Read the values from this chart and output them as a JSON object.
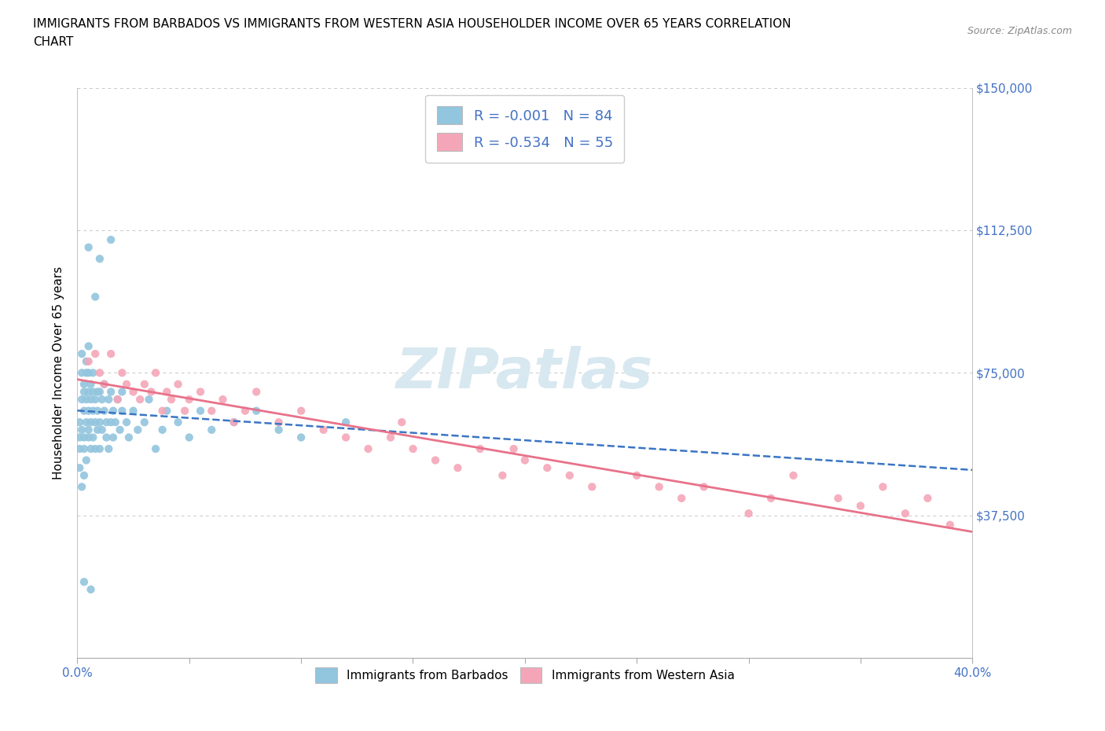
{
  "title_line1": "IMMIGRANTS FROM BARBADOS VS IMMIGRANTS FROM WESTERN ASIA HOUSEHOLDER INCOME OVER 65 YEARS CORRELATION",
  "title_line2": "CHART",
  "source": "Source: ZipAtlas.com",
  "ylabel": "Householder Income Over 65 years",
  "xlim": [
    0.0,
    0.4
  ],
  "ylim": [
    0,
    150000
  ],
  "yticks": [
    0,
    37500,
    75000,
    112500,
    150000
  ],
  "ytick_labels": [
    "",
    "$37,500",
    "$75,000",
    "$112,500",
    "$150,000"
  ],
  "xticks": [
    0.0,
    0.05,
    0.1,
    0.15,
    0.2,
    0.25,
    0.3,
    0.35,
    0.4
  ],
  "barbados_R": -0.001,
  "barbados_N": 84,
  "western_asia_R": -0.534,
  "western_asia_N": 55,
  "blue_scatter_color": "#92c5de",
  "pink_scatter_color": "#f4a6b8",
  "blue_line_color": "#3a75c4",
  "pink_line_color": "#e8728a",
  "axis_color": "#4472c4",
  "grid_color": "#c8c8c8",
  "legend_text_color": "#4472c4",
  "watermark_color": "#d8e8f0",
  "barbados_x": [
    0.001,
    0.001,
    0.001,
    0.001,
    0.002,
    0.002,
    0.002,
    0.002,
    0.002,
    0.003,
    0.003,
    0.003,
    0.003,
    0.003,
    0.003,
    0.004,
    0.004,
    0.004,
    0.004,
    0.004,
    0.005,
    0.005,
    0.005,
    0.005,
    0.005,
    0.005,
    0.006,
    0.006,
    0.006,
    0.006,
    0.007,
    0.007,
    0.007,
    0.007,
    0.008,
    0.008,
    0.008,
    0.009,
    0.009,
    0.009,
    0.01,
    0.01,
    0.01,
    0.011,
    0.011,
    0.012,
    0.012,
    0.013,
    0.013,
    0.014,
    0.014,
    0.015,
    0.015,
    0.016,
    0.016,
    0.017,
    0.018,
    0.019,
    0.02,
    0.02,
    0.022,
    0.023,
    0.025,
    0.027,
    0.03,
    0.032,
    0.035,
    0.038,
    0.04,
    0.045,
    0.05,
    0.055,
    0.06,
    0.07,
    0.08,
    0.09,
    0.1,
    0.12,
    0.015,
    0.008,
    0.01,
    0.005,
    0.003,
    0.006
  ],
  "barbados_y": [
    62000,
    58000,
    55000,
    50000,
    75000,
    68000,
    60000,
    45000,
    80000,
    65000,
    70000,
    55000,
    72000,
    58000,
    48000,
    75000,
    62000,
    68000,
    52000,
    78000,
    65000,
    70000,
    58000,
    75000,
    60000,
    82000,
    68000,
    55000,
    72000,
    62000,
    70000,
    65000,
    58000,
    75000,
    62000,
    68000,
    55000,
    70000,
    60000,
    65000,
    62000,
    70000,
    55000,
    68000,
    60000,
    65000,
    72000,
    58000,
    62000,
    68000,
    55000,
    70000,
    62000,
    65000,
    58000,
    62000,
    68000,
    60000,
    65000,
    70000,
    62000,
    58000,
    65000,
    60000,
    62000,
    68000,
    55000,
    60000,
    65000,
    62000,
    58000,
    65000,
    60000,
    62000,
    65000,
    60000,
    58000,
    62000,
    110000,
    95000,
    105000,
    108000,
    20000,
    18000
  ],
  "western_asia_x": [
    0.005,
    0.008,
    0.01,
    0.012,
    0.015,
    0.018,
    0.02,
    0.022,
    0.025,
    0.028,
    0.03,
    0.033,
    0.035,
    0.038,
    0.04,
    0.042,
    0.045,
    0.048,
    0.05,
    0.055,
    0.06,
    0.065,
    0.07,
    0.075,
    0.08,
    0.09,
    0.1,
    0.11,
    0.12,
    0.13,
    0.14,
    0.15,
    0.16,
    0.17,
    0.18,
    0.19,
    0.2,
    0.21,
    0.22,
    0.23,
    0.25,
    0.26,
    0.27,
    0.28,
    0.3,
    0.31,
    0.32,
    0.34,
    0.35,
    0.36,
    0.37,
    0.38,
    0.39,
    0.195,
    0.145
  ],
  "western_asia_y": [
    78000,
    80000,
    75000,
    72000,
    80000,
    68000,
    75000,
    72000,
    70000,
    68000,
    72000,
    70000,
    75000,
    65000,
    70000,
    68000,
    72000,
    65000,
    68000,
    70000,
    65000,
    68000,
    62000,
    65000,
    70000,
    62000,
    65000,
    60000,
    58000,
    55000,
    58000,
    55000,
    52000,
    50000,
    55000,
    48000,
    52000,
    50000,
    48000,
    45000,
    48000,
    45000,
    42000,
    45000,
    38000,
    42000,
    48000,
    42000,
    40000,
    45000,
    38000,
    42000,
    35000,
    55000,
    62000
  ]
}
